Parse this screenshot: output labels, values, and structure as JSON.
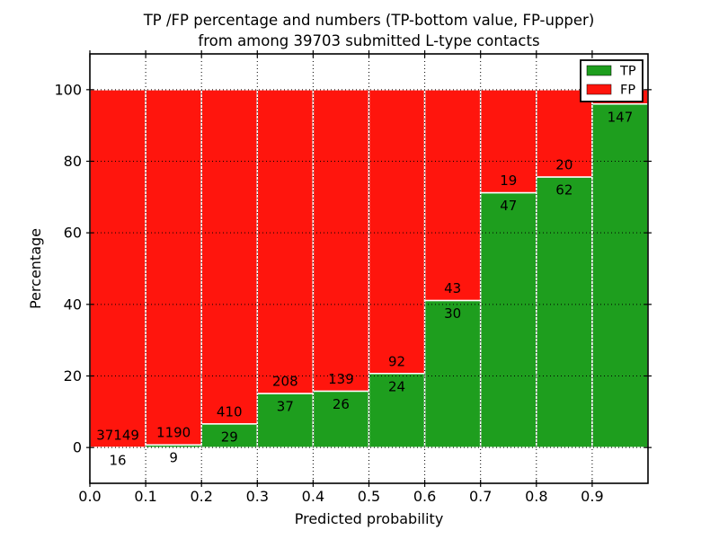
{
  "chart_data": {
    "type": "bar",
    "stacked": true,
    "title_line1": "TP /FP percentage and numbers (TP-bottom value, FP-upper)",
    "title_line2": "from among 39703 submitted L-type contacts",
    "xlabel": "Predicted probability",
    "ylabel": "Percentage",
    "xlim": [
      0.0,
      1.0
    ],
    "ylim": [
      -10,
      110
    ],
    "grid": true,
    "x_tick_values": [
      0.0,
      0.1,
      0.2,
      0.3,
      0.4,
      0.5,
      0.6,
      0.7,
      0.8,
      0.9
    ],
    "x_tick_labels": [
      "0.0",
      "0.1",
      "0.2",
      "0.3",
      "0.4",
      "0.5",
      "0.6",
      "0.7",
      "0.8",
      "0.9"
    ],
    "y_tick_values": [
      0,
      20,
      40,
      60,
      80,
      100
    ],
    "y_tick_labels": [
      "0",
      "20",
      "40",
      "60",
      "80",
      "100"
    ],
    "x_gridline_values": [
      0.1,
      0.2,
      0.3,
      0.4,
      0.5,
      0.6,
      0.7,
      0.8,
      0.9
    ],
    "legend": {
      "position": "upper right",
      "entries": [
        {
          "label": "TP",
          "color": "#1e9e1e"
        },
        {
          "label": "FP",
          "color": "#ff150d"
        }
      ]
    },
    "series": [
      {
        "name": "TP",
        "color": "#1e9e1e",
        "position": "bottom"
      },
      {
        "name": "FP",
        "color": "#ff150d",
        "position": "top"
      }
    ],
    "bars": [
      {
        "bin": "0.0-0.1",
        "x0": 0.0,
        "x1": 0.1,
        "tp_count": 16,
        "fp_count": 37149,
        "tp_pct": 0.04,
        "fp_pct": 99.96
      },
      {
        "bin": "0.1-0.2",
        "x0": 0.1,
        "x1": 0.2,
        "tp_count": 9,
        "fp_count": 1190,
        "tp_pct": 0.75,
        "fp_pct": 99.25
      },
      {
        "bin": "0.2-0.3",
        "x0": 0.2,
        "x1": 0.3,
        "tp_count": 29,
        "fp_count": 410,
        "tp_pct": 6.61,
        "fp_pct": 93.39
      },
      {
        "bin": "0.3-0.4",
        "x0": 0.3,
        "x1": 0.4,
        "tp_count": 37,
        "fp_count": 208,
        "tp_pct": 15.1,
        "fp_pct": 84.9
      },
      {
        "bin": "0.4-0.5",
        "x0": 0.4,
        "x1": 0.5,
        "tp_count": 26,
        "fp_count": 139,
        "tp_pct": 15.76,
        "fp_pct": 84.24
      },
      {
        "bin": "0.5-0.6",
        "x0": 0.5,
        "x1": 0.6,
        "tp_count": 24,
        "fp_count": 92,
        "tp_pct": 20.69,
        "fp_pct": 79.31
      },
      {
        "bin": "0.6-0.7",
        "x0": 0.6,
        "x1": 0.7,
        "tp_count": 30,
        "fp_count": 43,
        "tp_pct": 41.1,
        "fp_pct": 58.9
      },
      {
        "bin": "0.7-0.8",
        "x0": 0.7,
        "x1": 0.8,
        "tp_count": 47,
        "fp_count": 19,
        "tp_pct": 71.21,
        "fp_pct": 28.79
      },
      {
        "bin": "0.8-0.9",
        "x0": 0.8,
        "x1": 0.9,
        "tp_count": 62,
        "fp_count": 20,
        "tp_pct": 75.61,
        "fp_pct": 24.39
      },
      {
        "bin": "0.9-1.0",
        "x0": 0.9,
        "x1": 1.0,
        "tp_count": 147,
        "fp_count": null,
        "tp_pct": 96.0,
        "fp_pct": 4.0,
        "fp_label_visible": false
      }
    ]
  },
  "colors": {
    "tp_green": "#1e9e1e",
    "fp_red": "#ff150d",
    "axis_black": "#000000",
    "background": "#ffffff",
    "bar_edge": "#ffffff"
  }
}
